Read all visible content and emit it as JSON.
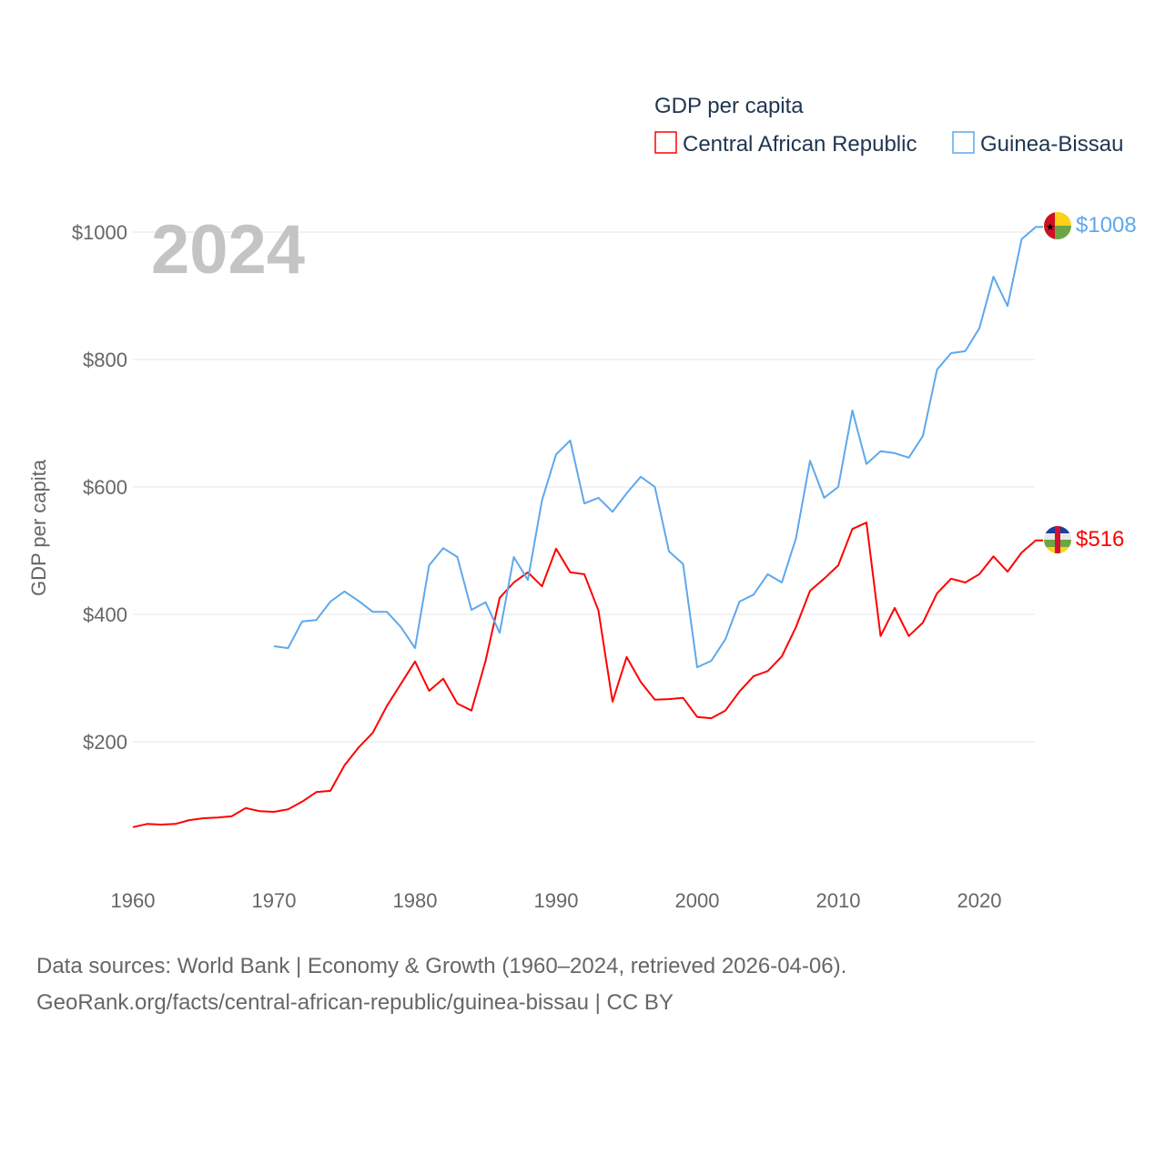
{
  "chart_data": {
    "type": "line",
    "title": "GDP per capita",
    "big_year_label": "2024",
    "ylabel": "GDP per capita",
    "xlabel": "",
    "xlim": [
      1960,
      2024
    ],
    "ylim": [
      0,
      1000
    ],
    "x_ticks": [
      1960,
      1970,
      1980,
      1990,
      2000,
      2010,
      2020
    ],
    "y_ticks": [
      200,
      400,
      600,
      800,
      1000
    ],
    "y_tick_labels": [
      "$200",
      "$400",
      "$600",
      "$800",
      "$1000"
    ],
    "grid": true,
    "legend_position": "top-right",
    "series": [
      {
        "name": "Central African Republic",
        "color": "#ff0000",
        "start_year": 1960,
        "end_label": "$516",
        "values": [
          66,
          71,
          70,
          71,
          77,
          80,
          81,
          83,
          96,
          91,
          90,
          94,
          106,
          121,
          123,
          163,
          191,
          214,
          256,
          291,
          326,
          280,
          299,
          260,
          249,
          327,
          426,
          450,
          466,
          444,
          503,
          466,
          463,
          406,
          263,
          333,
          294,
          266,
          267,
          269,
          239,
          237,
          249,
          279,
          303,
          311,
          334,
          380,
          437,
          456,
          477,
          534,
          544,
          366,
          410,
          366,
          387,
          433,
          456,
          450,
          463,
          491,
          467,
          497,
          516
        ]
      },
      {
        "name": "Guinea-Bissau",
        "color": "#5ea8ec",
        "start_year": 1970,
        "end_label": "$1008",
        "values": [
          350,
          347,
          389,
          391,
          420,
          436,
          421,
          404,
          404,
          380,
          347,
          477,
          504,
          490,
          407,
          419,
          371,
          490,
          454,
          579,
          651,
          673,
          574,
          583,
          561,
          590,
          616,
          600,
          499,
          479,
          317,
          327,
          361,
          420,
          431,
          463,
          450,
          519,
          641,
          583,
          600,
          720,
          636,
          656,
          653,
          646,
          680,
          784,
          810,
          813,
          849,
          930,
          884,
          989,
          1008
        ]
      }
    ]
  },
  "footer": {
    "line1": "Data sources: World Bank | Economy & Growth (1960–2024, retrieved 2026-04-06).",
    "line2": "GeoRank.org/facts/central-african-republic/guinea-bissau | CC BY"
  }
}
